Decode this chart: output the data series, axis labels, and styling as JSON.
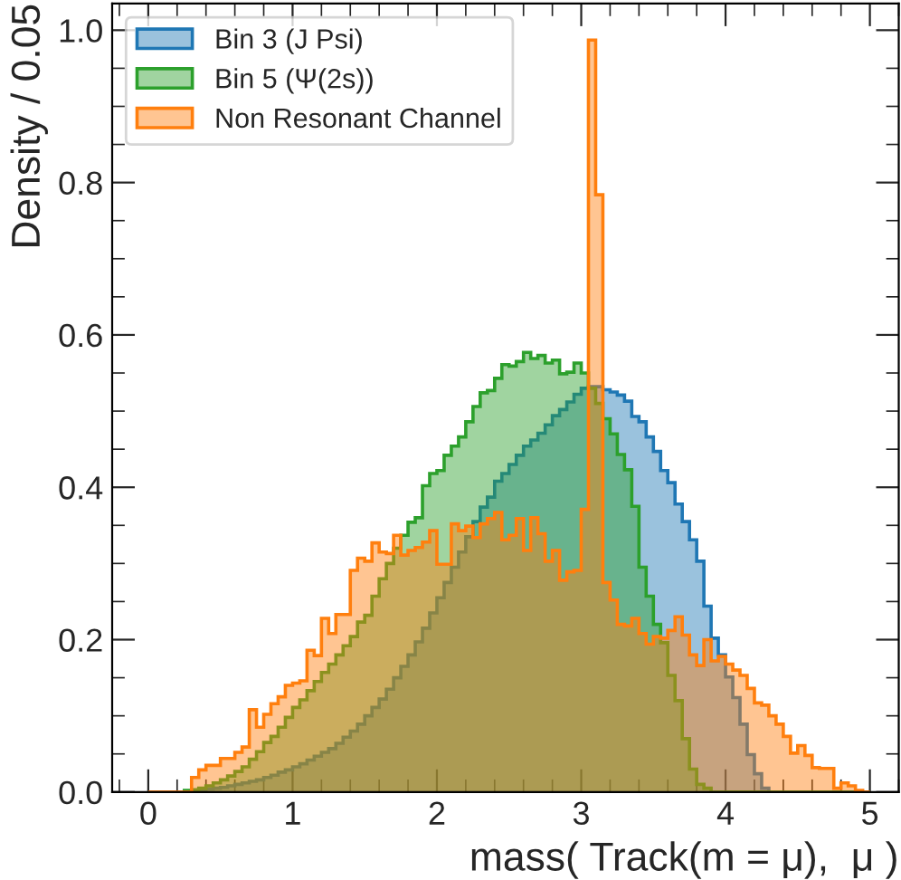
{
  "chart_data": {
    "type": "histogram",
    "xlabel": "mass( Track(m = μ),  μ )",
    "ylabel": "Density / 0.05",
    "bins": [
      0.0,
      0.05,
      0.1,
      0.15,
      0.2,
      0.25,
      0.3,
      0.35,
      0.4,
      0.45,
      0.5,
      0.55,
      0.6,
      0.65,
      0.7,
      0.75,
      0.8,
      0.85,
      0.9,
      0.95,
      1.0,
      1.05,
      1.1,
      1.15,
      1.2,
      1.25,
      1.3,
      1.35,
      1.4,
      1.45,
      1.5,
      1.55,
      1.6,
      1.65,
      1.7,
      1.75,
      1.8,
      1.85,
      1.9,
      1.95,
      2.0,
      2.05,
      2.1,
      2.15,
      2.2,
      2.25,
      2.3,
      2.35,
      2.4,
      2.45,
      2.5,
      2.55,
      2.6,
      2.65,
      2.7,
      2.75,
      2.8,
      2.85,
      2.9,
      2.95,
      3.0,
      3.05,
      3.1,
      3.15,
      3.2,
      3.25,
      3.3,
      3.35,
      3.4,
      3.45,
      3.5,
      3.55,
      3.6,
      3.65,
      3.7,
      3.75,
      3.8,
      3.85,
      3.9,
      3.95,
      4.0,
      4.05,
      4.1,
      4.15,
      4.2,
      4.25,
      4.3,
      4.35,
      4.4,
      4.45,
      4.5,
      4.55,
      4.6,
      4.65,
      4.7,
      4.75,
      4.8,
      4.85,
      4.9,
      4.95,
      5.0
    ],
    "series": [
      {
        "name": "Bin 3 (J Psi)",
        "color": "#1f77b4",
        "values": [
          0,
          0,
          0,
          0,
          0,
          0.001,
          0.002,
          0.003,
          0.004,
          0.005,
          0.006,
          0.008,
          0.01,
          0.012,
          0.014,
          0.016,
          0.019,
          0.022,
          0.026,
          0.029,
          0.033,
          0.037,
          0.042,
          0.047,
          0.052,
          0.057,
          0.064,
          0.072,
          0.08,
          0.089,
          0.1,
          0.111,
          0.122,
          0.135,
          0.15,
          0.165,
          0.18,
          0.197,
          0.215,
          0.235,
          0.255,
          0.275,
          0.295,
          0.315,
          0.335,
          0.355,
          0.374,
          0.387,
          0.408,
          0.418,
          0.43,
          0.442,
          0.454,
          0.462,
          0.471,
          0.482,
          0.494,
          0.502,
          0.512,
          0.522,
          0.53,
          0.532,
          0.532,
          0.528,
          0.525,
          0.521,
          0.513,
          0.493,
          0.486,
          0.466,
          0.447,
          0.422,
          0.406,
          0.378,
          0.355,
          0.331,
          0.303,
          0.244,
          0.202,
          0.18,
          0.151,
          0.124,
          0.089,
          0.049,
          0.024,
          0.005,
          0,
          0,
          0,
          0,
          0,
          0,
          0,
          0,
          0,
          0,
          0,
          0,
          0,
          0
        ]
      },
      {
        "name": "Bin 5 (Ψ(2s))",
        "color": "#2ca02c",
        "values": [
          0,
          0,
          0,
          0,
          0,
          0.002,
          0.003,
          0.005,
          0.008,
          0.012,
          0.016,
          0.021,
          0.027,
          0.033,
          0.043,
          0.053,
          0.065,
          0.073,
          0.085,
          0.098,
          0.111,
          0.121,
          0.133,
          0.145,
          0.157,
          0.168,
          0.18,
          0.192,
          0.204,
          0.223,
          0.232,
          0.257,
          0.28,
          0.3,
          0.32,
          0.337,
          0.354,
          0.36,
          0.402,
          0.418,
          0.422,
          0.442,
          0.454,
          0.466,
          0.486,
          0.506,
          0.524,
          0.527,
          0.543,
          0.561,
          0.559,
          0.565,
          0.577,
          0.569,
          0.573,
          0.563,
          0.567,
          0.549,
          0.551,
          0.563,
          0.55,
          0.53,
          0.51,
          0.49,
          0.47,
          0.443,
          0.423,
          0.375,
          0.295,
          0.257,
          0.22,
          0.196,
          0.153,
          0.12,
          0.07,
          0.03,
          0.01,
          0.005,
          0,
          0,
          0,
          0,
          0,
          0,
          0,
          0,
          0,
          0,
          0,
          0,
          0,
          0,
          0,
          0,
          0,
          0,
          0,
          0,
          0,
          0
        ]
      },
      {
        "name": "Non Resonant Channel",
        "color": "#ff7f0e",
        "values": [
          0,
          0,
          0,
          0,
          0,
          0,
          0.019,
          0.029,
          0.035,
          0.035,
          0.044,
          0.044,
          0.052,
          0.059,
          0.108,
          0.085,
          0.102,
          0.116,
          0.125,
          0.14,
          0.143,
          0.146,
          0.186,
          0.179,
          0.228,
          0.208,
          0.233,
          0.233,
          0.291,
          0.307,
          0.303,
          0.327,
          0.315,
          0.313,
          0.337,
          0.311,
          0.317,
          0.321,
          0.328,
          0.343,
          0.299,
          0.299,
          0.352,
          0.343,
          0.349,
          0.334,
          0.352,
          0.359,
          0.367,
          0.331,
          0.337,
          0.359,
          0.317,
          0.36,
          0.339,
          0.303,
          0.317,
          0.278,
          0.289,
          0.291,
          0.371,
          0.987,
          0.784,
          0.275,
          0.252,
          0.22,
          0.218,
          0.228,
          0.208,
          0.194,
          0.204,
          0.202,
          0.212,
          0.23,
          0.206,
          0.18,
          0.166,
          0.2,
          0.172,
          0.178,
          0.168,
          0.16,
          0.153,
          0.136,
          0.117,
          0.114,
          0.1,
          0.089,
          0.073,
          0.051,
          0.061,
          0.048,
          0.032,
          0.031,
          0.031,
          0.005,
          0.012,
          0.008,
          0.002,
          0
        ]
      }
    ],
    "xlim": [
      -0.25,
      5.2
    ],
    "ylim": [
      0,
      1.035
    ],
    "xticks": [
      0,
      1,
      2,
      3,
      4,
      5
    ],
    "yticks": [
      {
        "value": 0,
        "label": "0.0"
      },
      {
        "value": 0.2,
        "label": "0.2"
      },
      {
        "value": 0.4,
        "label": "0.4"
      },
      {
        "value": 0.6,
        "label": "0.6"
      },
      {
        "value": 0.8,
        "label": "0.8"
      },
      {
        "value": 1.0,
        "label": "1.0"
      }
    ],
    "legend": "top left"
  }
}
